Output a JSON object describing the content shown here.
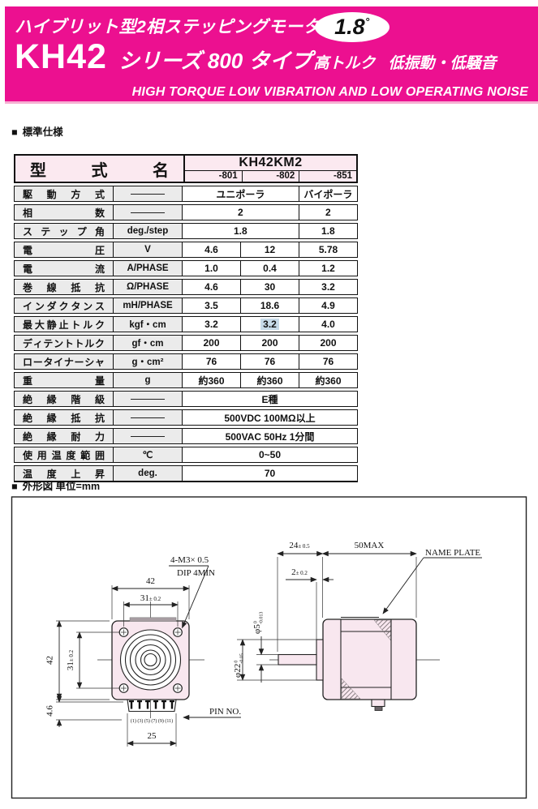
{
  "banner": {
    "bg": "#EC1090",
    "title_jp": "ハイブリット型2相ステッピングモータ",
    "badge_value": "1.8",
    "badge_degree": "°",
    "model": "KH42",
    "series": "シリーズ 800 タイプ",
    "series_feature": "高トルク",
    "feature": "低振動・低騒音",
    "subtitle_en": "HIGH TORQUE  LOW VIBRATION AND LOW OPERATING NOISE"
  },
  "spec": {
    "marker": "■",
    "heading": "標準仕様",
    "header": {
      "name_chars": [
        "型",
        "式",
        "名"
      ],
      "model": "KH42KM2",
      "variants": [
        "-801",
        "-802",
        "-851"
      ]
    },
    "highlight_color": "#C7DAE8",
    "rows": [
      {
        "label": "駆動方式",
        "unit": "—",
        "cells": [
          {
            "text": "ユニポーラ",
            "span": 2
          },
          {
            "text": "バイポーラ",
            "span": 1
          }
        ]
      },
      {
        "label": "相数",
        "unit": "—",
        "cells": [
          {
            "text": "2",
            "span": 2
          },
          {
            "text": "2",
            "span": 1
          }
        ]
      },
      {
        "label": "ステップ角",
        "unit": "deg./step",
        "cells": [
          {
            "text": "1.8",
            "span": 2
          },
          {
            "text": "1.8",
            "span": 1
          }
        ]
      },
      {
        "label": "電圧",
        "unit": "V",
        "cells": [
          {
            "text": "4.6",
            "span": 1
          },
          {
            "text": "12",
            "span": 1
          },
          {
            "text": "5.78",
            "span": 1
          }
        ]
      },
      {
        "label": "電流",
        "unit": "A/PHASE",
        "cells": [
          {
            "text": "1.0",
            "span": 1
          },
          {
            "text": "0.4",
            "span": 1
          },
          {
            "text": "1.2",
            "span": 1
          }
        ]
      },
      {
        "label": "巻線抵抗",
        "unit": "Ω/PHASE",
        "cells": [
          {
            "text": "4.6",
            "span": 1
          },
          {
            "text": "30",
            "span": 1
          },
          {
            "text": "3.2",
            "span": 1
          }
        ]
      },
      {
        "label": "インダクタンス",
        "unit": "mH/PHASE",
        "cells": [
          {
            "text": "3.5",
            "span": 1
          },
          {
            "text": "18.6",
            "span": 1
          },
          {
            "text": "4.9",
            "span": 1
          }
        ]
      },
      {
        "label": "最大静止トルク",
        "unit": "kgf・cm",
        "cells": [
          {
            "text": "3.2",
            "span": 1
          },
          {
            "text": "3.2",
            "span": 1,
            "highlight": true
          },
          {
            "text": "4.0",
            "span": 1
          }
        ]
      },
      {
        "label": "ディテントトルク",
        "unit": "gf・cm",
        "cells": [
          {
            "text": "200",
            "span": 1
          },
          {
            "text": "200",
            "span": 1
          },
          {
            "text": "200",
            "span": 1
          }
        ]
      },
      {
        "label": "ロータイナーシャ",
        "unit": "g・cm²",
        "cells": [
          {
            "text": "76",
            "span": 1
          },
          {
            "text": "76",
            "span": 1
          },
          {
            "text": "76",
            "span": 1
          }
        ]
      },
      {
        "label": "重量",
        "unit": "g",
        "cells": [
          {
            "text": "約360",
            "span": 1
          },
          {
            "text": "約360",
            "span": 1
          },
          {
            "text": "約360",
            "span": 1
          }
        ]
      },
      {
        "label": "絶縁階級",
        "unit": "—",
        "cells": [
          {
            "text": "E種",
            "span": 3
          }
        ]
      },
      {
        "label": "絶縁抵抗",
        "unit": "—",
        "cells": [
          {
            "text": "500VDC  100MΩ以上",
            "span": 3
          }
        ]
      },
      {
        "label": "絶縁耐力",
        "unit": "—",
        "cells": [
          {
            "text": "500VAC  50Hz  1分間",
            "span": 3
          }
        ]
      },
      {
        "label": "使用温度範囲",
        "unit": "℃",
        "cells": [
          {
            "text": "0~50",
            "span": 3
          }
        ]
      },
      {
        "label": "温度上昇",
        "unit": "deg.",
        "cells": [
          {
            "text": "70",
            "span": 3
          }
        ]
      }
    ]
  },
  "outline": {
    "marker": "■",
    "heading": "外形図 単位=mm",
    "front": {
      "width": "42",
      "hole_pitch": "31",
      "hole_pitch_tol": "± 0.2",
      "height": "42",
      "hole_pitch_v": "31",
      "hole_pitch_v_tol": "± 0.2",
      "screw_note": "4-M3× 0.5",
      "screw_depth": "DIP 4MIN",
      "connector_width": "25",
      "connector_height": "4.6",
      "pin_numbers": "(1) (3) (5) (7) (9) (11)",
      "pin_label": "PIN NO."
    },
    "side": {
      "shaft_length": "24",
      "shaft_length_tol": "± 0.5",
      "body_length": "50MAX",
      "pilot_depth": "2",
      "pilot_depth_tol": "± 0.2",
      "shaft_dia": "φ5",
      "shaft_dia_tol_upper": "0",
      "shaft_dia_tol_lower": "-0.013",
      "pilot_dia": "φ22",
      "pilot_dia_tol_upper": "0",
      "pilot_dia_tol_lower": "-0.05",
      "name_plate": "NAME PLATE"
    }
  }
}
